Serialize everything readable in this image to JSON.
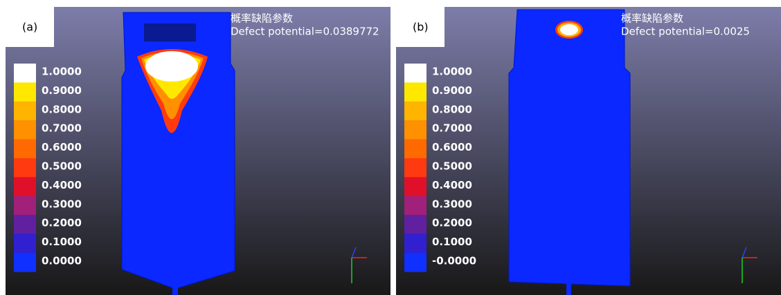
{
  "panels": [
    {
      "label": "(a)",
      "title": "概率缺陷参数",
      "subtitle": "Defect potential=0.0389772",
      "legend": [
        "1.0000",
        "0.9000",
        "0.8000",
        "0.7000",
        "0.6000",
        "0.5000",
        "0.4000",
        "0.3000",
        "0.2000",
        "0.1000",
        "0.0000"
      ]
    },
    {
      "label": "(b)",
      "title": "概率缺陷参数",
      "subtitle": "Defect potential=0.0025",
      "legend": [
        "1.0000",
        "0.9000",
        "0.8000",
        "0.7000",
        "0.6000",
        "0.5000",
        "0.4000",
        "0.3000",
        "0.2000",
        "0.1000",
        "-0.0000"
      ]
    }
  ]
}
